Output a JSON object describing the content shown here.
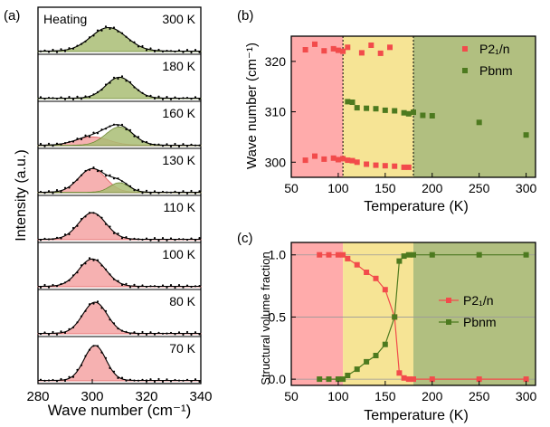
{
  "colors": {
    "red": "#f24b4b",
    "green": "#4d7a1f",
    "red_fill": "#f4a3a3",
    "green_fill": "#a9bd74",
    "red_band": "#ff9c9c",
    "yellow_band": "#f5df82",
    "green_band": "#a3b46a"
  },
  "panel_a": {
    "label": "(a)",
    "header_note": "Heating",
    "xlabel": "Wave number (cm⁻¹)",
    "ylabel": "Intensity (a.u.)",
    "xlim": [
      280,
      340
    ],
    "xticks": [
      "280",
      "300",
      "320",
      "340"
    ],
    "spectra": [
      {
        "temp": "300 K",
        "green": {
          "center": 306,
          "width": 6.5,
          "amp": 0.62
        },
        "red": null
      },
      {
        "temp": "180 K",
        "green": {
          "center": 310,
          "width": 5.0,
          "amp": 0.55
        },
        "red": null
      },
      {
        "temp": "160 K",
        "green": {
          "center": 310,
          "width": 5.0,
          "amp": 0.48
        },
        "red": {
          "center": 300,
          "width": 6.0,
          "amp": 0.22
        }
      },
      {
        "temp": "130 K",
        "green": {
          "center": 310,
          "width": 3.5,
          "amp": 0.25
        },
        "red": {
          "center": 300,
          "width": 5.0,
          "amp": 0.62
        }
      },
      {
        "temp": "110 K",
        "green": null,
        "red": {
          "center": 300,
          "width": 5.0,
          "amp": 0.7
        }
      },
      {
        "temp": "100 K",
        "green": null,
        "red": {
          "center": 300,
          "width": 5.0,
          "amp": 0.72
        }
      },
      {
        "temp": "80 K",
        "green": null,
        "red": {
          "center": 301,
          "width": 4.5,
          "amp": 0.82
        }
      },
      {
        "temp": "70 K",
        "green": null,
        "red": {
          "center": 301,
          "width": 4.0,
          "amp": 0.92
        }
      }
    ]
  },
  "chart_data": [
    {
      "type": "scatter",
      "label": "(b)",
      "xlabel": "Temperature (K)",
      "ylabel": "Wave number (cm⁻¹)",
      "xlim": [
        50,
        310
      ],
      "ylim": [
        297,
        325
      ],
      "xticks": [
        50,
        100,
        150,
        200,
        250,
        300
      ],
      "yticks": [
        300,
        310,
        320
      ],
      "bands": [
        [
          50,
          105
        ],
        [
          105,
          180
        ],
        [
          180,
          310
        ]
      ],
      "vlines": [
        105,
        180
      ],
      "legend": "top-right",
      "series": [
        {
          "name": "P2₁/n",
          "color": "red",
          "x": [
            65,
            75,
            85,
            95,
            100,
            105,
            110,
            125,
            135,
            145,
            155,
            65,
            75,
            85,
            95,
            100,
            105,
            110,
            115,
            120,
            130,
            140,
            150,
            160,
            170,
            175
          ],
          "y": [
            322.3,
            323.4,
            322.1,
            322.5,
            322.2,
            322.0,
            322.8,
            321.7,
            323.2,
            321.6,
            322.8,
            300.4,
            301.2,
            300.6,
            300.8,
            300.5,
            300.7,
            300.4,
            300.3,
            300.0,
            299.6,
            299.4,
            299.3,
            299.2,
            299.0,
            299.0
          ]
        },
        {
          "name": "Pbnm",
          "color": "green",
          "x": [
            110,
            115,
            120,
            130,
            140,
            150,
            160,
            170,
            175,
            180,
            190,
            200,
            250,
            300
          ],
          "y": [
            312.0,
            311.9,
            310.8,
            310.7,
            310.6,
            310.3,
            310.2,
            309.8,
            309.6,
            309.9,
            309.3,
            309.2,
            307.9,
            305.4
          ]
        }
      ]
    },
    {
      "type": "line",
      "label": "(c)",
      "xlabel": "Temperature (K)",
      "ylabel": "Structural volume fraction",
      "xlim": [
        50,
        310
      ],
      "ylim": [
        -0.05,
        1.1
      ],
      "xticks": [
        50,
        100,
        150,
        200,
        250,
        300
      ],
      "yticks": [
        "0.0",
        "0.5",
        "1.0"
      ],
      "bands": [
        [
          50,
          105
        ],
        [
          105,
          180
        ],
        [
          180,
          310
        ]
      ],
      "legend": "center-right",
      "series": [
        {
          "name": "P2₁/n",
          "color": "red",
          "x": [
            80,
            90,
            100,
            105,
            110,
            120,
            130,
            140,
            150,
            160,
            165,
            170,
            175,
            180,
            200,
            250,
            300
          ],
          "y": [
            1.0,
            1.0,
            1.0,
            1.0,
            0.97,
            0.92,
            0.86,
            0.81,
            0.72,
            0.5,
            0.05,
            0.01,
            0.0,
            0.0,
            0.0,
            0.0,
            0.0
          ]
        },
        {
          "name": "Pbnm",
          "color": "green",
          "x": [
            80,
            90,
            100,
            105,
            110,
            120,
            130,
            140,
            150,
            160,
            165,
            170,
            175,
            180,
            200,
            250,
            300
          ],
          "y": [
            0.0,
            0.0,
            0.0,
            0.0,
            0.03,
            0.08,
            0.14,
            0.19,
            0.28,
            0.5,
            0.95,
            0.99,
            1.0,
            1.0,
            1.0,
            1.0,
            1.0
          ]
        }
      ]
    }
  ]
}
